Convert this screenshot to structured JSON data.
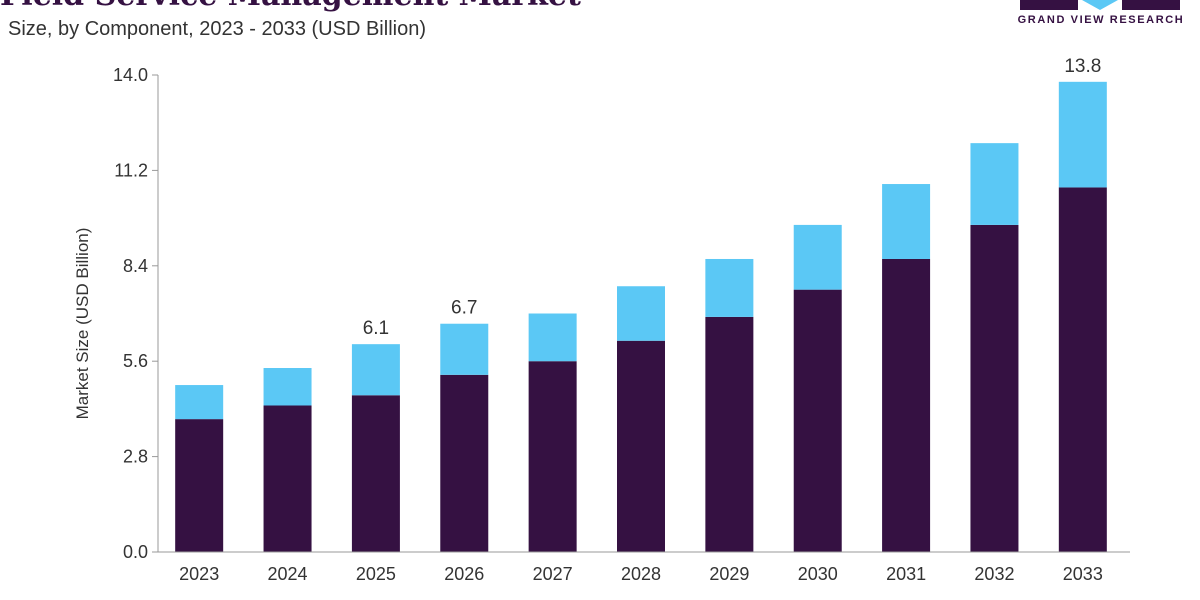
{
  "header": {
    "title": "Field Service Management Market",
    "subtitle": "Size, by Component, 2023 - 2033 (USD Billion)"
  },
  "logo": {
    "text": "GRAND VIEW RESEARCH",
    "colors": {
      "dark": "#351142",
      "light": "#5BC8F5"
    }
  },
  "chart_data": {
    "type": "bar",
    "stacked": true,
    "categories": [
      "2023",
      "2024",
      "2025",
      "2026",
      "2027",
      "2028",
      "2029",
      "2030",
      "2031",
      "2032",
      "2033"
    ],
    "series": [
      {
        "values": [
          3.9,
          4.3,
          4.6,
          5.2,
          5.6,
          6.2,
          6.9,
          7.7,
          8.6,
          9.6,
          10.7
        ],
        "color": "#351142"
      },
      {
        "values": [
          1.0,
          1.1,
          1.5,
          1.5,
          1.4,
          1.6,
          1.7,
          1.9,
          2.2,
          2.4,
          3.1
        ],
        "color": "#5BC8F5"
      }
    ],
    "data_labels": [
      {
        "category": "2025",
        "text": "6.1"
      },
      {
        "category": "2026",
        "text": "6.7"
      },
      {
        "category": "2033",
        "text": "13.8"
      }
    ],
    "title": "Field Service Management Market",
    "subtitle": "Size, by Component, 2023 - 2033 (USD Billion)",
    "xlabel": "",
    "ylabel": "Market Size (USD Billion)",
    "ylim": [
      0,
      14.0
    ],
    "yticks": [
      "0.0",
      "2.8",
      "5.6",
      "8.4",
      "11.2",
      "14.0"
    ],
    "grid": false,
    "legend": "none"
  }
}
